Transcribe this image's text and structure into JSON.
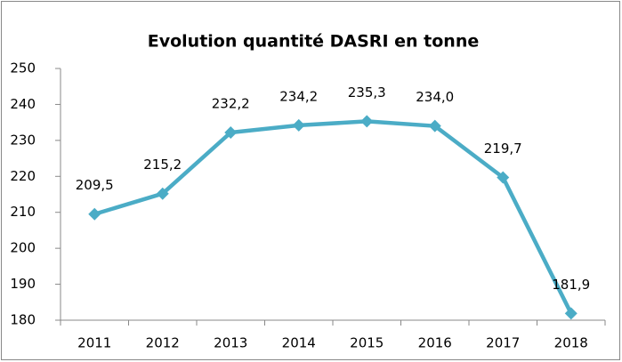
{
  "chart_data": {
    "type": "line",
    "title": "Evolution quantité DASRI en tonne",
    "categories": [
      "2011",
      "2012",
      "2013",
      "2014",
      "2015",
      "2016",
      "2017",
      "2018"
    ],
    "values": [
      209.5,
      215.2,
      232.2,
      234.2,
      235.3,
      234.0,
      219.7,
      181.9
    ],
    "value_labels": [
      "209,5",
      "215,2",
      "232,2",
      "234,2",
      "235,3",
      "234,0",
      "219,7",
      "181,9"
    ],
    "color": "#4bacc6",
    "ylim": [
      180,
      250
    ],
    "yticks": [
      180,
      190,
      200,
      210,
      220,
      230,
      240,
      250
    ],
    "grid": false
  }
}
